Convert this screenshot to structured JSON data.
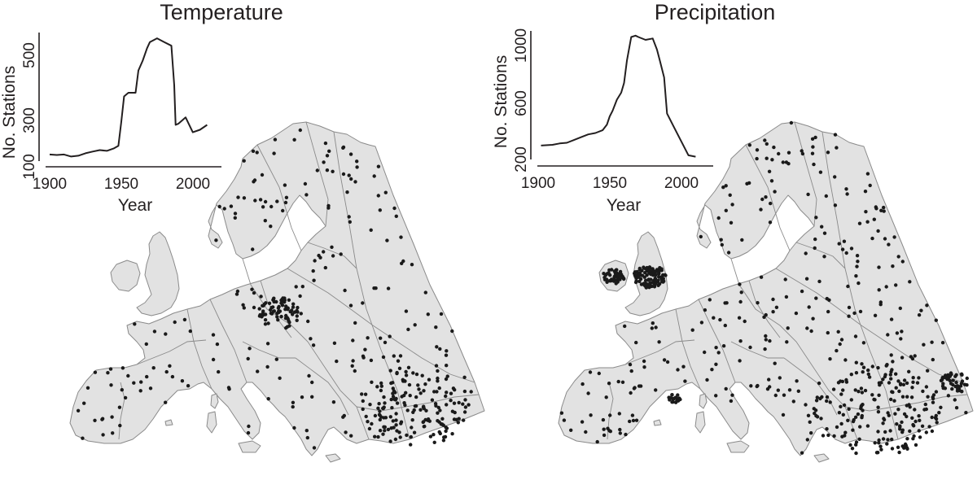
{
  "panels": [
    {
      "key": "temperature",
      "title": "Temperature",
      "inset": {
        "ylabel": "No. Stations",
        "xlabel": "Year",
        "x_ticks": [
          "1900",
          "1950",
          "2000"
        ],
        "y_ticks": [
          "100",
          "300",
          "500"
        ]
      }
    },
    {
      "key": "precipitation",
      "title": "Precipitation",
      "inset": {
        "ylabel": "No. Stations",
        "xlabel": "Year",
        "x_ticks": [
          "1900",
          "1950",
          "2000"
        ],
        "y_ticks": [
          "200",
          "600",
          "1000"
        ]
      }
    }
  ],
  "chart_data": [
    {
      "type": "line",
      "title": "Temperature",
      "xlabel": "Year",
      "ylabel": "No. Stations",
      "xlim": [
        1900,
        2020
      ],
      "ylim": [
        100,
        620
      ],
      "grid": false,
      "x": [
        1900,
        1905,
        1910,
        1915,
        1920,
        1925,
        1930,
        1935,
        1940,
        1945,
        1948,
        1950,
        1952,
        1955,
        1960,
        1962,
        1965,
        1968,
        1970,
        1975,
        1980,
        1985,
        1987,
        1988,
        1990,
        1995,
        2000,
        2005,
        2010
      ],
      "series": [
        {
          "values": [
            120,
            118,
            120,
            112,
            115,
            125,
            132,
            138,
            135,
            145,
            155,
            250,
            355,
            370,
            370,
            460,
            500,
            550,
            575,
            590,
            575,
            560,
            400,
            240,
            245,
            270,
            210,
            220,
            240
          ]
        }
      ]
    },
    {
      "type": "line",
      "title": "Precipitation",
      "xlabel": "Year",
      "ylabel": "No. Stations",
      "xlim": [
        1900,
        2020
      ],
      "ylim": [
        170,
        1100
      ],
      "grid": false,
      "x": [
        1902,
        1910,
        1915,
        1920,
        1925,
        1930,
        1935,
        1940,
        1945,
        1948,
        1950,
        1952,
        1955,
        1958,
        1960,
        1962,
        1965,
        1968,
        1970,
        1975,
        1980,
        1983,
        1985,
        1988,
        1990,
        1995,
        2000,
        2005,
        2010
      ],
      "series": [
        {
          "values": [
            270,
            275,
            285,
            290,
            310,
            330,
            350,
            360,
            380,
            420,
            480,
            520,
            600,
            650,
            720,
            880,
            1050,
            1060,
            1050,
            1030,
            1040,
            960,
            880,
            760,
            500,
            400,
            300,
            200,
            190
          ]
        }
      ]
    }
  ],
  "map": {
    "land_color": "#e2e2e2",
    "border_color": "#8a8a8a",
    "station_color": "#1a1a1a"
  }
}
